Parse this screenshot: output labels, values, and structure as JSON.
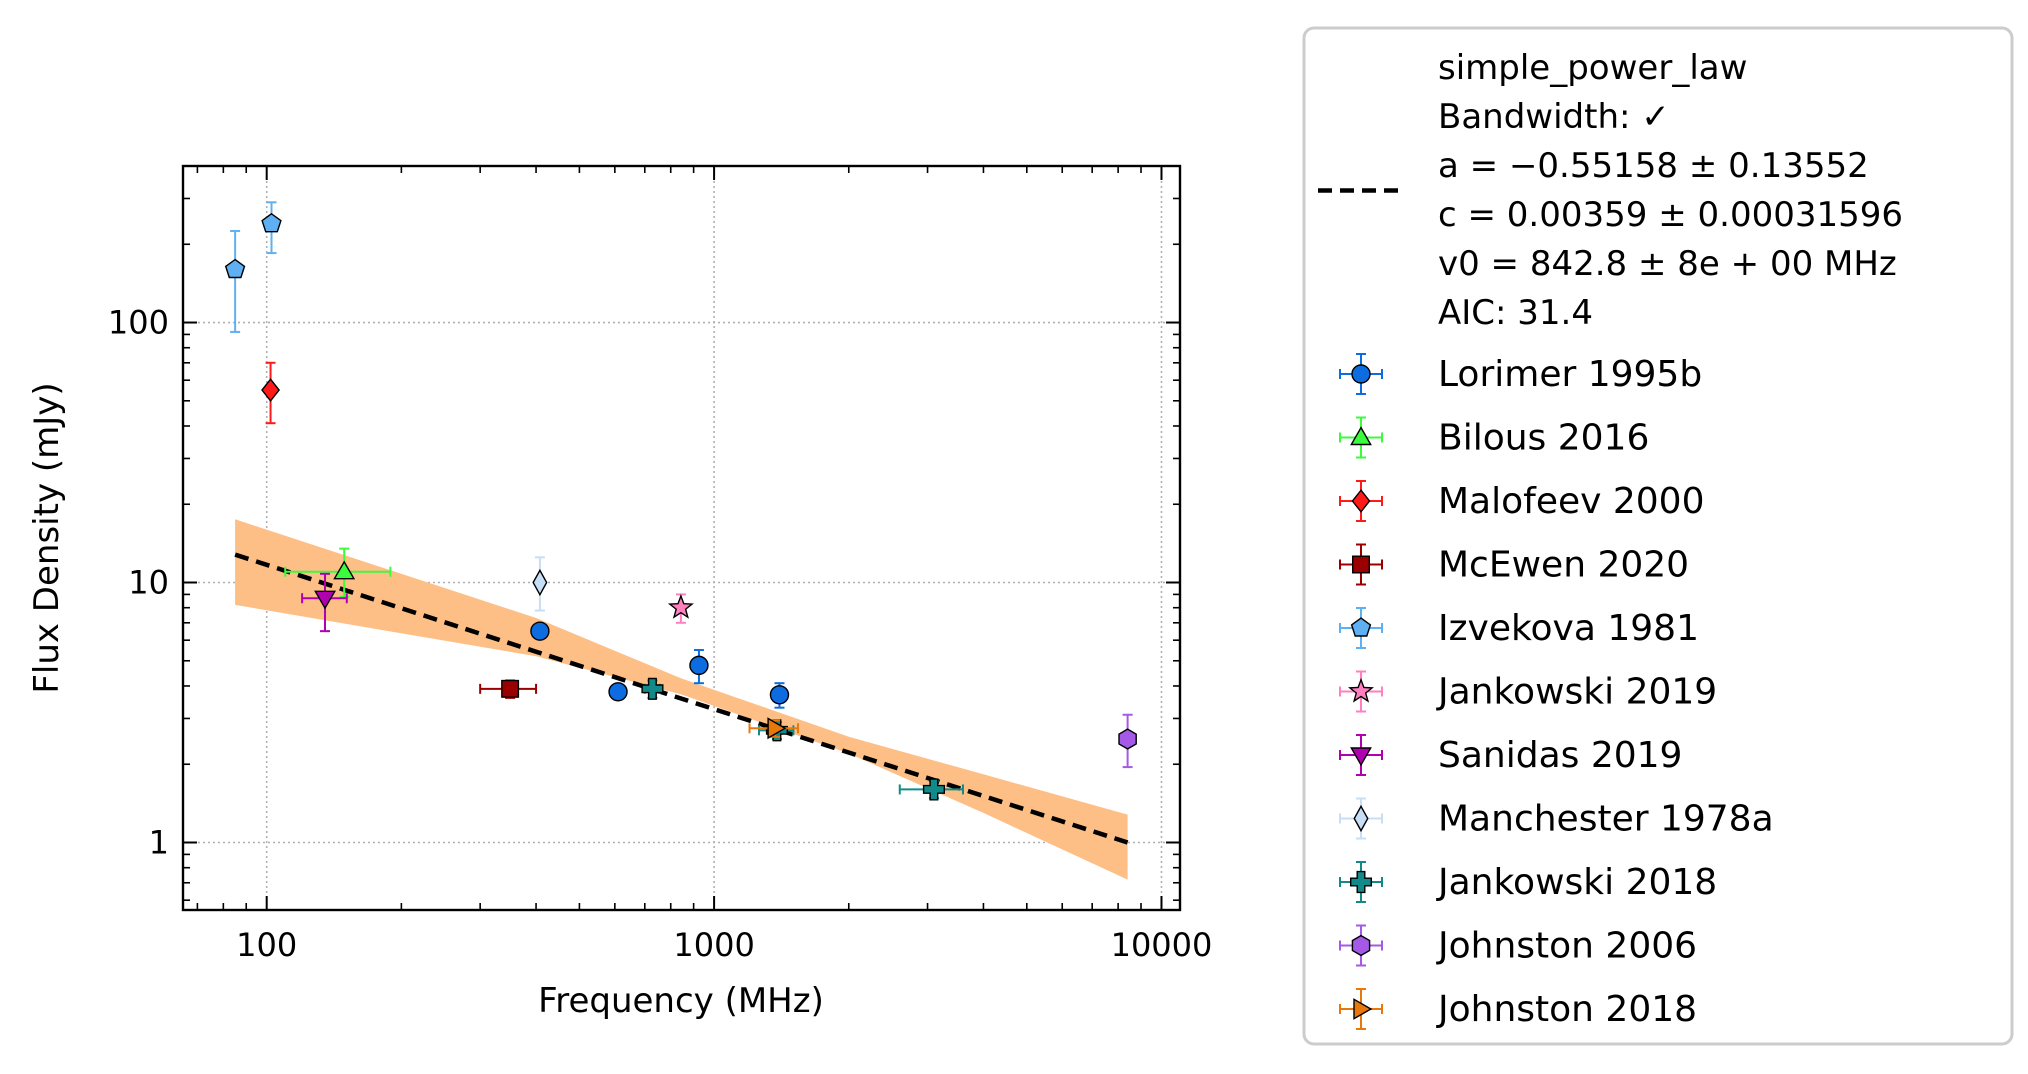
{
  "chart_data": {
    "type": "scatter",
    "title": "",
    "xlabel": "Frequency (MHz)",
    "ylabel": "Flux Density (mJy)",
    "xscale": "log",
    "yscale": "log",
    "xlim": [
      65,
      11000
    ],
    "ylim": [
      0.55,
      400
    ],
    "xticks": [
      {
        "value": 100,
        "label": "100"
      },
      {
        "value": 1000,
        "label": "1000"
      },
      {
        "value": 10000,
        "label": "10000"
      }
    ],
    "yticks": [
      {
        "value": 1,
        "label": "1"
      },
      {
        "value": 10,
        "label": "10"
      },
      {
        "value": 100,
        "label": "100"
      }
    ],
    "grid": true,
    "legend_position": "outside-right",
    "fit": {
      "model": "simple_power_law",
      "label_lines": [
        "simple_power_law",
        "Bandwidth: ✓",
        "a = −0.55158 ± 0.13552",
        "c = 0.00359 ± 0.00031596",
        "v0 = 842.8 ± 8e + 00 MHz",
        "AIC: 31.4"
      ],
      "line_color": "#000000",
      "band_color": "#fdbf86",
      "line_points": [
        {
          "x": 85,
          "y": 12.8
        },
        {
          "x": 8400,
          "y": 1.0
        }
      ],
      "band_upper": [
        {
          "x": 85,
          "y": 17.5
        },
        {
          "x": 400,
          "y": 7.3
        },
        {
          "x": 843,
          "y": 4.28
        },
        {
          "x": 2000,
          "y": 2.55
        },
        {
          "x": 4000,
          "y": 1.83
        },
        {
          "x": 8400,
          "y": 1.28
        }
      ],
      "band_lower": [
        {
          "x": 85,
          "y": 8.2
        },
        {
          "x": 400,
          "y": 5.2
        },
        {
          "x": 843,
          "y": 3.72
        },
        {
          "x": 2000,
          "y": 2.2
        },
        {
          "x": 4000,
          "y": 1.3
        },
        {
          "x": 8400,
          "y": 0.72
        }
      ]
    },
    "series": [
      {
        "name": "Lorimer 1995b",
        "marker": "circle",
        "color": "#0d6de0",
        "error_color": "#0d6de0",
        "points": [
          {
            "x": 408,
            "y": 6.5,
            "ylo": 6.2,
            "yhi": 6.8
          },
          {
            "x": 610,
            "y": 3.8,
            "ylo": 3.6,
            "yhi": 4.0
          },
          {
            "x": 925,
            "y": 4.8,
            "ylo": 4.1,
            "yhi": 5.5
          },
          {
            "x": 1400,
            "y": 3.7,
            "ylo": 3.3,
            "yhi": 4.1
          }
        ]
      },
      {
        "name": "Bilous 2016",
        "marker": "triangle-up",
        "color": "#3cfb3c",
        "error_color": "#3cfb3c",
        "points": [
          {
            "x": 149,
            "y": 11.0,
            "ylo": 8.8,
            "yhi": 13.5,
            "xlo": 110,
            "xhi": 189
          }
        ]
      },
      {
        "name": "Malofeev 2000",
        "marker": "diamond",
        "color": "#ff1a1a",
        "error_color": "#ff1a1a",
        "points": [
          {
            "x": 102,
            "y": 55,
            "ylo": 41,
            "yhi": 70
          }
        ]
      },
      {
        "name": "McEwen 2020",
        "marker": "square",
        "color": "#9a0000",
        "error_color": "#9a0000",
        "points": [
          {
            "x": 350,
            "y": 3.9,
            "ylo": 3.6,
            "yhi": 4.2,
            "xlo": 300,
            "xhi": 400
          }
        ]
      },
      {
        "name": "Izvekova 1981",
        "marker": "pentagon",
        "color": "#5fb0f2",
        "error_color": "#5fb0f2",
        "points": [
          {
            "x": 85,
            "y": 160,
            "ylo": 92,
            "yhi": 225
          },
          {
            "x": 102.5,
            "y": 240,
            "ylo": 185,
            "yhi": 290
          }
        ]
      },
      {
        "name": "Jankowski 2019",
        "marker": "star",
        "color": "#ff7fbf",
        "error_color": "#ff7fbf",
        "points": [
          {
            "x": 843,
            "y": 8.0,
            "ylo": 7.0,
            "yhi": 9.0
          }
        ]
      },
      {
        "name": "Sanidas 2019",
        "marker": "triangle-down",
        "color": "#b000b0",
        "error_color": "#b000b0",
        "points": [
          {
            "x": 135,
            "y": 8.7,
            "ylo": 6.5,
            "yhi": 10.8,
            "xlo": 120,
            "xhi": 151
          }
        ]
      },
      {
        "name": "Manchester 1978a",
        "marker": "thin-diamond",
        "color": "#c6def6",
        "error_color": "#c6def6",
        "points": [
          {
            "x": 408,
            "y": 10.0,
            "ylo": 7.8,
            "yhi": 12.5
          }
        ]
      },
      {
        "name": "Jankowski 2018",
        "marker": "plus",
        "color": "#138a8a",
        "error_color": "#138a8a",
        "points": [
          {
            "x": 728,
            "y": 3.9,
            "ylo": 3.6,
            "yhi": 4.2,
            "xlo": 700,
            "xhi": 756
          },
          {
            "x": 1382,
            "y": 2.7,
            "ylo": 2.5,
            "yhi": 2.9,
            "xlo": 1260,
            "xhi": 1504
          },
          {
            "x": 3100,
            "y": 1.6,
            "ylo": 1.48,
            "yhi": 1.72,
            "xlo": 2600,
            "xhi": 3600
          }
        ]
      },
      {
        "name": "Johnston 2006",
        "marker": "hexagon",
        "color": "#a45ae6",
        "error_color": "#a45ae6",
        "points": [
          {
            "x": 8400,
            "y": 2.5,
            "ylo": 1.95,
            "yhi": 3.1
          }
        ]
      },
      {
        "name": "Johnston 2018",
        "marker": "triangle-right",
        "color": "#e8780c",
        "error_color": "#e8780c",
        "points": [
          {
            "x": 1369,
            "y": 2.75,
            "ylo": 2.55,
            "yhi": 2.95,
            "xlo": 1200,
            "xhi": 1540
          }
        ]
      }
    ]
  }
}
